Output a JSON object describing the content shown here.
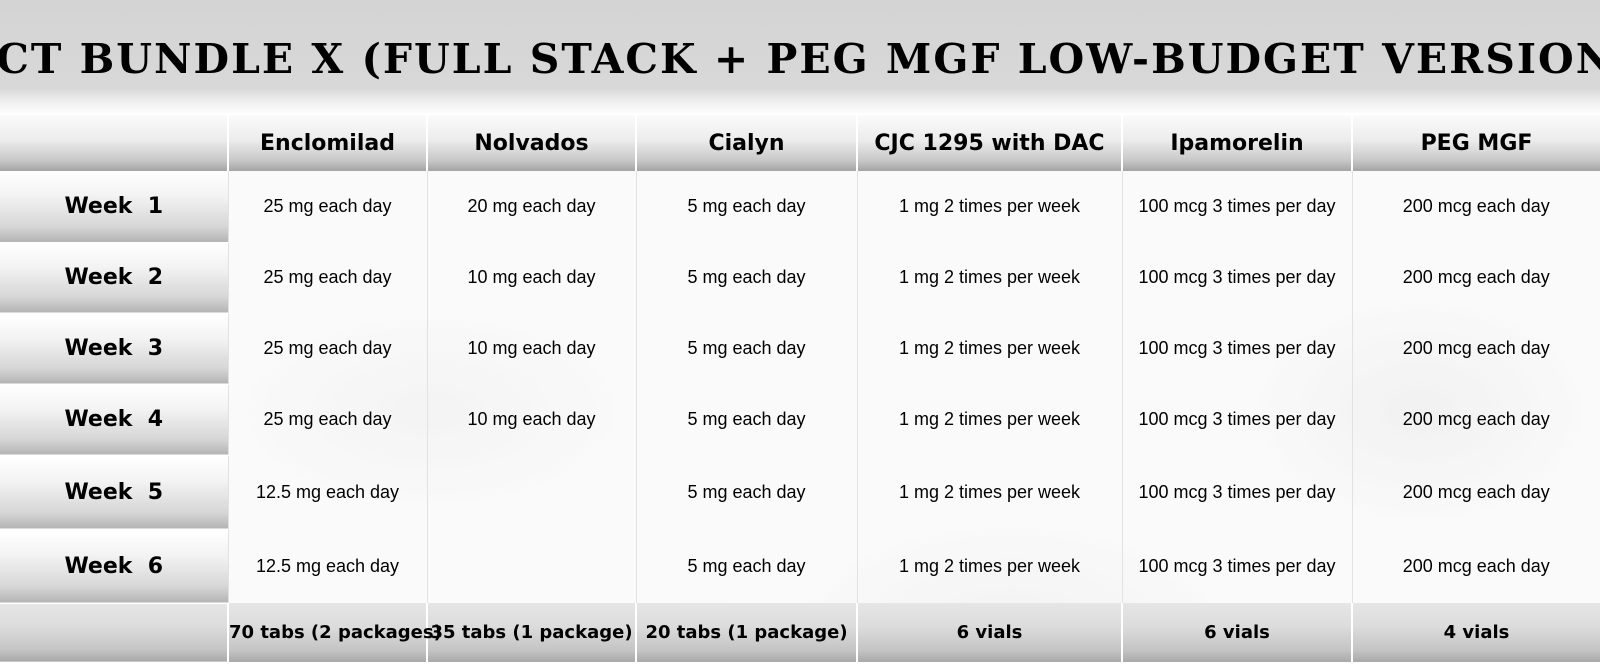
{
  "title": "PCT BUNDLE X (FULL STACK + PEG MGF LOW-BUDGET VERSION)",
  "columns": [
    "",
    "Enclomilad",
    "Nolvados",
    "Cialyn",
    "CJC 1295 with DAC",
    "Ipamorelin",
    "PEG MGF"
  ],
  "rows": [
    {
      "week": "Week  1",
      "cells": [
        "25 mg each day",
        "20 mg each day",
        "5 mg each day",
        "1 mg 2 times per week",
        "100 mcg 3 times per day",
        "200 mcg each day"
      ]
    },
    {
      "week": "Week  2",
      "cells": [
        "25 mg each day",
        "10 mg each day",
        "5 mg each day",
        "1 mg 2 times per week",
        "100 mcg 3 times per day",
        "200 mcg each day"
      ]
    },
    {
      "week": "Week  3",
      "cells": [
        "25 mg each day",
        "10 mg each day",
        "5 mg each day",
        "1 mg 2 times per week",
        "100 mcg 3 times per day",
        "200 mcg each day"
      ]
    },
    {
      "week": "Week  4",
      "cells": [
        "25 mg each day",
        "10 mg each day",
        "5 mg each day",
        "1 mg 2 times per week",
        "100 mcg 3 times per day",
        "200 mcg each day"
      ]
    },
    {
      "week": "Week  5",
      "cells": [
        "12.5 mg each day",
        "",
        "5 mg each day",
        "1 mg 2 times per week",
        "100 mcg 3 times per day",
        "200 mcg each day"
      ]
    },
    {
      "week": "Week  6",
      "cells": [
        "12.5 mg each day",
        "",
        "5 mg each day",
        "1 mg 2 times per week",
        "100 mcg 3 times per day",
        "200 mcg each day"
      ]
    }
  ],
  "totals": [
    "",
    "70 tabs (2 packages)",
    "35 tabs (1 package)",
    "20 tabs (1 package)",
    "6 vials",
    "6 vials",
    "4 vials"
  ]
}
